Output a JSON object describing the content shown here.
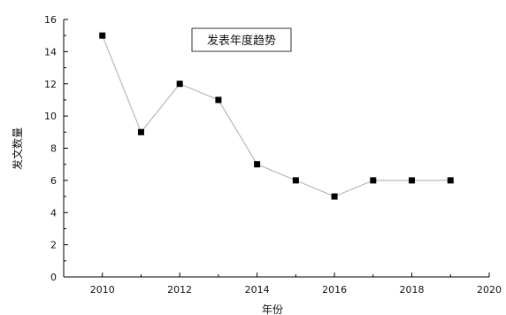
{
  "chart_data": {
    "type": "line",
    "title": "发表年度趋势",
    "xlabel": "年份",
    "ylabel": "发文数量",
    "xlim": [
      2009,
      2020
    ],
    "ylim": [
      0,
      16
    ],
    "x_ticks": [
      2010,
      2012,
      2014,
      2016,
      2018,
      2020
    ],
    "y_ticks": [
      0,
      2,
      4,
      6,
      8,
      10,
      12,
      14,
      16
    ],
    "grid": false,
    "legend": "none",
    "x": [
      2010,
      2011,
      2012,
      2013,
      2014,
      2015,
      2016,
      2017,
      2018,
      2019
    ],
    "series": [
      {
        "values": [
          15,
          9,
          12,
          11,
          7,
          6,
          5,
          6,
          6,
          6
        ],
        "line_color": "#b8b8b8",
        "marker_color": "#000000",
        "marker": "square"
      }
    ]
  }
}
